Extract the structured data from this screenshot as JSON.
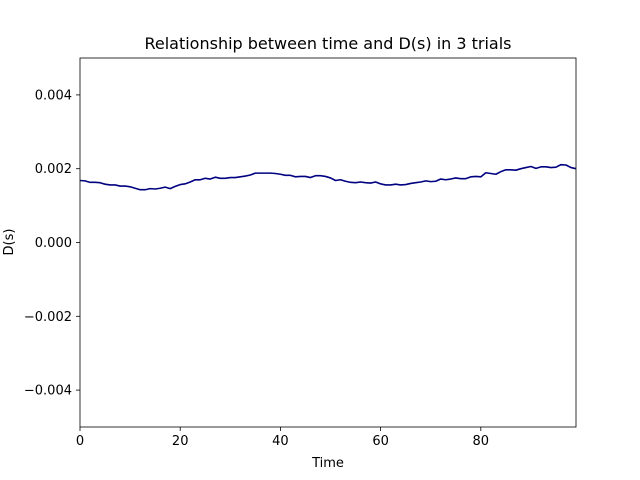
{
  "chart_data": {
    "type": "line",
    "title": "Relationship between time and D(s) in 3 trials",
    "xlabel": "Time",
    "ylabel": "D(s)",
    "xlim": [
      0,
      99
    ],
    "ylim": [
      -0.005,
      0.005
    ],
    "xticks": [
      0,
      20,
      40,
      60,
      80
    ],
    "xtick_labels": [
      "0",
      "20",
      "40",
      "60",
      "80"
    ],
    "yticks": [
      -0.004,
      -0.002,
      0.0,
      0.002,
      0.004
    ],
    "ytick_labels": [
      "−0.004",
      "−0.002",
      "0.000",
      "0.002",
      "0.004"
    ],
    "grid": false,
    "line_color": "#000080",
    "series": [
      {
        "x": [
          0,
          1,
          2,
          3,
          4,
          5,
          6,
          7,
          8,
          9,
          10,
          11,
          12,
          13,
          14,
          15,
          16,
          17,
          18,
          19,
          20,
          21,
          22,
          23,
          24,
          25,
          26,
          27,
          28,
          29,
          30,
          31,
          32,
          33,
          34,
          35,
          36,
          37,
          38,
          39,
          40,
          41,
          42,
          43,
          44,
          45,
          46,
          47,
          48,
          49,
          50,
          51,
          52,
          53,
          54,
          55,
          56,
          57,
          58,
          59,
          60,
          61,
          62,
          63,
          64,
          65,
          66,
          67,
          68,
          69,
          70,
          71,
          72,
          73,
          74,
          75,
          76,
          77,
          78,
          79,
          80,
          81,
          82,
          83,
          84,
          85,
          86,
          87,
          88,
          89,
          90,
          91,
          92,
          93,
          94,
          95,
          96,
          97,
          98,
          99
        ],
        "values": [
          0.00168,
          0.00167,
          0.00163,
          0.00163,
          0.00162,
          0.00158,
          0.00156,
          0.00156,
          0.00153,
          0.00153,
          0.00151,
          0.00147,
          0.00143,
          0.00143,
          0.00146,
          0.00145,
          0.00147,
          0.0015,
          0.00146,
          0.00152,
          0.00157,
          0.00159,
          0.00164,
          0.0017,
          0.0017,
          0.00174,
          0.00172,
          0.00177,
          0.00174,
          0.00174,
          0.00176,
          0.00176,
          0.00178,
          0.0018,
          0.00183,
          0.00188,
          0.00188,
          0.00188,
          0.00188,
          0.00187,
          0.00185,
          0.00182,
          0.00182,
          0.00178,
          0.00179,
          0.00179,
          0.00176,
          0.00181,
          0.00181,
          0.00179,
          0.00175,
          0.00168,
          0.0017,
          0.00166,
          0.00163,
          0.00162,
          0.00164,
          0.00162,
          0.00161,
          0.00164,
          0.00159,
          0.00156,
          0.00156,
          0.00158,
          0.00156,
          0.00157,
          0.0016,
          0.00162,
          0.00164,
          0.00167,
          0.00165,
          0.00166,
          0.00172,
          0.0017,
          0.00172,
          0.00175,
          0.00173,
          0.00173,
          0.00178,
          0.00179,
          0.00178,
          0.00189,
          0.00187,
          0.00185,
          0.00192,
          0.00197,
          0.00197,
          0.00196,
          0.002,
          0.00203,
          0.00206,
          0.00201,
          0.00205,
          0.00205,
          0.00203,
          0.00204,
          0.00211,
          0.0021,
          0.00203,
          0.002
        ]
      }
    ]
  }
}
